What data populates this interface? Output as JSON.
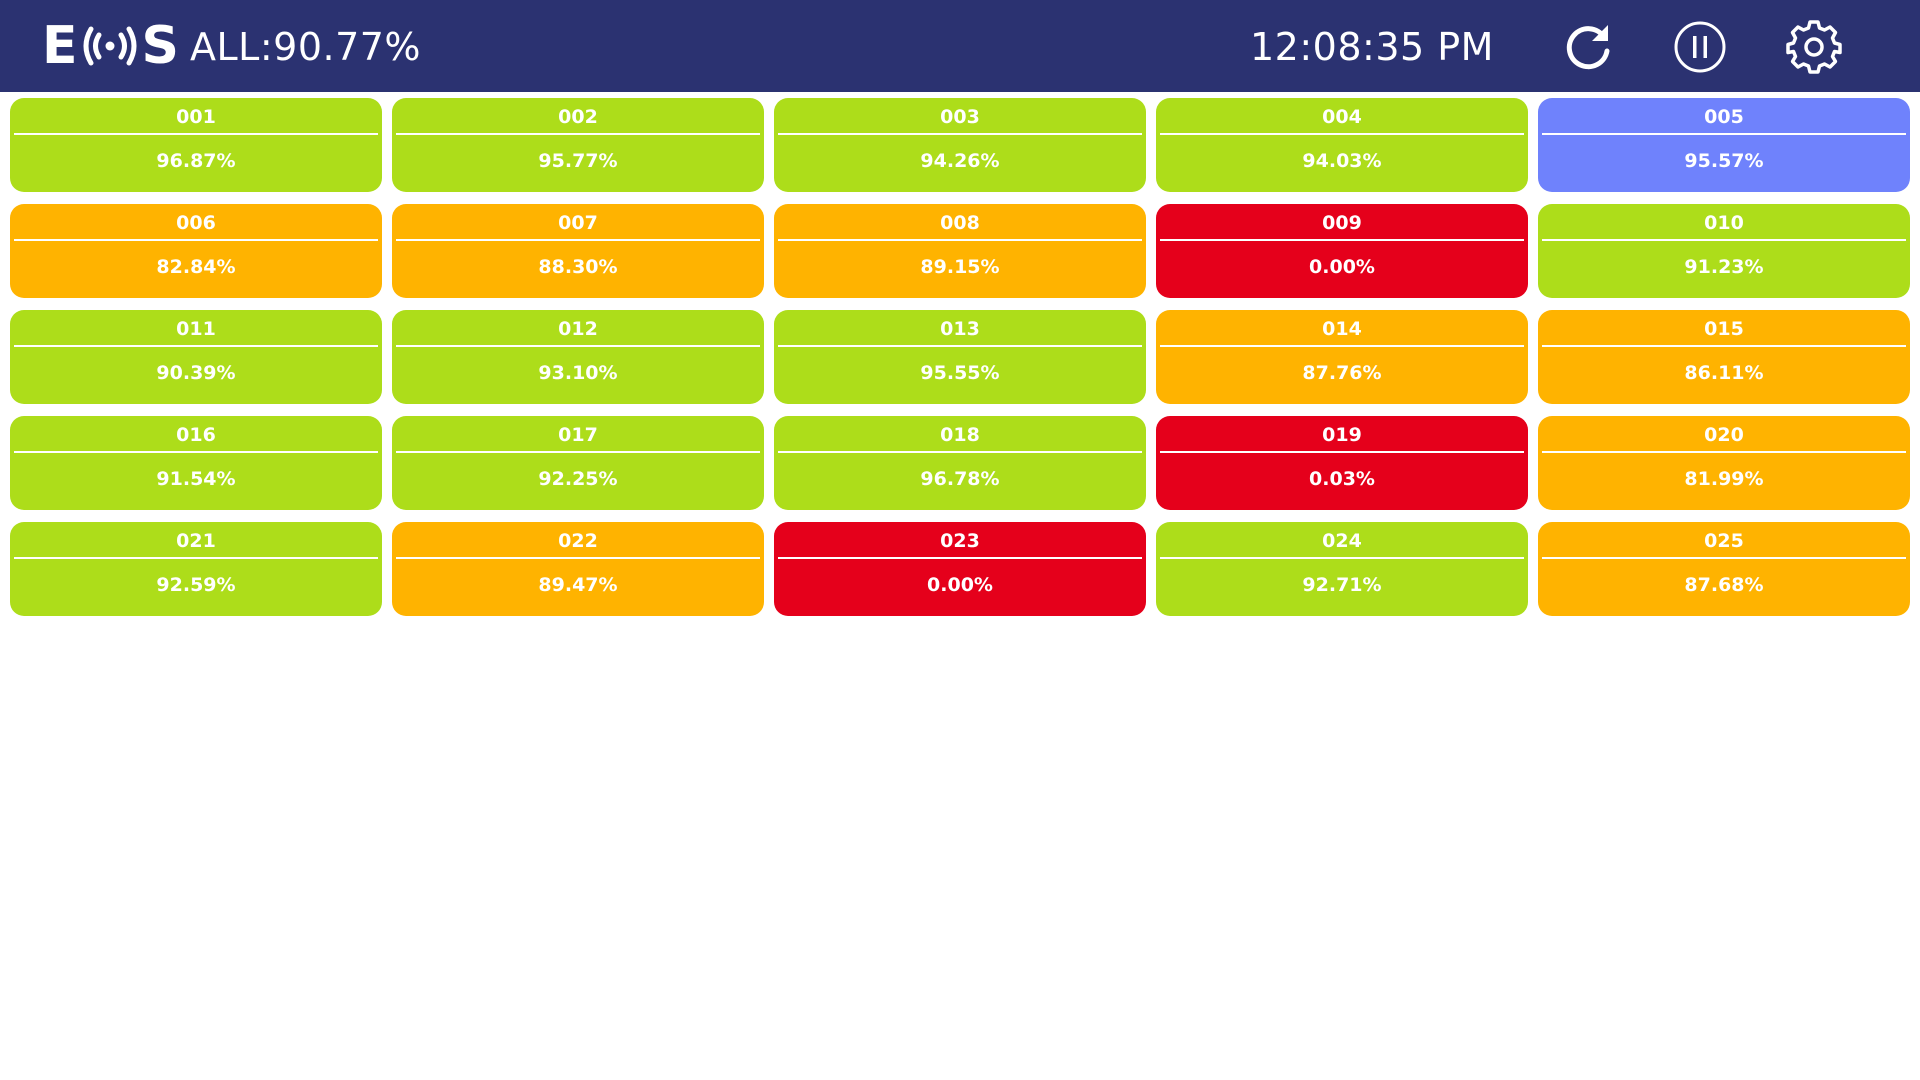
{
  "header": {
    "logo_left": "E",
    "logo_right": "S",
    "overall_label": "ALL:90.77%",
    "time": "12:08:35 PM",
    "icons": [
      "refresh-icon",
      "pause-icon",
      "gear-icon"
    ]
  },
  "colors": {
    "header_bg": "#2b3271",
    "good": "#addd1a",
    "warn": "#ffb300",
    "bad": "#e5001b",
    "selected": "#6f82fc"
  },
  "tiles": [
    {
      "id": "001",
      "value": "96.87%",
      "status": "good"
    },
    {
      "id": "002",
      "value": "95.77%",
      "status": "good"
    },
    {
      "id": "003",
      "value": "94.26%",
      "status": "good"
    },
    {
      "id": "004",
      "value": "94.03%",
      "status": "good"
    },
    {
      "id": "005",
      "value": "95.57%",
      "status": "selected"
    },
    {
      "id": "006",
      "value": "82.84%",
      "status": "warn"
    },
    {
      "id": "007",
      "value": "88.30%",
      "status": "warn"
    },
    {
      "id": "008",
      "value": "89.15%",
      "status": "warn"
    },
    {
      "id": "009",
      "value": "0.00%",
      "status": "bad"
    },
    {
      "id": "010",
      "value": "91.23%",
      "status": "good"
    },
    {
      "id": "011",
      "value": "90.39%",
      "status": "good"
    },
    {
      "id": "012",
      "value": "93.10%",
      "status": "good"
    },
    {
      "id": "013",
      "value": "95.55%",
      "status": "good"
    },
    {
      "id": "014",
      "value": "87.76%",
      "status": "warn"
    },
    {
      "id": "015",
      "value": "86.11%",
      "status": "warn"
    },
    {
      "id": "016",
      "value": "91.54%",
      "status": "good"
    },
    {
      "id": "017",
      "value": "92.25%",
      "status": "good"
    },
    {
      "id": "018",
      "value": "96.78%",
      "status": "good"
    },
    {
      "id": "019",
      "value": "0.03%",
      "status": "bad"
    },
    {
      "id": "020",
      "value": "81.99%",
      "status": "warn"
    },
    {
      "id": "021",
      "value": "92.59%",
      "status": "good"
    },
    {
      "id": "022",
      "value": "89.47%",
      "status": "warn"
    },
    {
      "id": "023",
      "value": "0.00%",
      "status": "bad"
    },
    {
      "id": "024",
      "value": "92.71%",
      "status": "good"
    },
    {
      "id": "025",
      "value": "87.68%",
      "status": "warn"
    }
  ]
}
